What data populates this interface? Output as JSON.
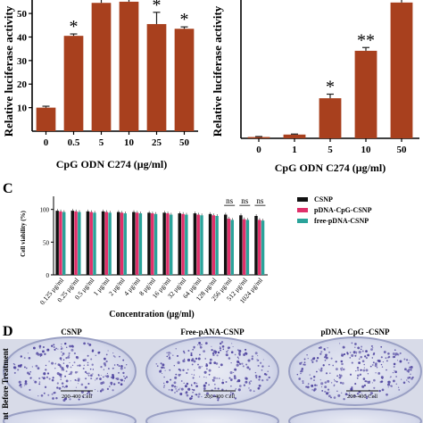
{
  "panel_c_letter": "C",
  "panel_d_letter": "D",
  "chart_data": [
    {
      "panel": "A",
      "type": "bar",
      "xlabel": "CpG ODN C274 (μg/ml)",
      "ylabel": "Relative luciferase activity",
      "categories": [
        "0",
        "0.5",
        "5",
        "10",
        "25",
        "50"
      ],
      "values": [
        10,
        40.5,
        54.5,
        55,
        45.5,
        43.5
      ],
      "errors": [
        0.6,
        0.8,
        1.5,
        3,
        5,
        0.8
      ],
      "significance": [
        "",
        "*",
        "",
        "",
        "*",
        "*"
      ],
      "yticks": [
        10,
        20,
        30,
        40,
        50
      ],
      "ylim": [
        0,
        58
      ],
      "color": "#a8401e",
      "grid": false
    },
    {
      "panel": "B",
      "type": "bar",
      "xlabel": "CpG ODN C274 (μg/ml)",
      "ylabel": "Relative luciferase activity",
      "categories": [
        "0",
        "1",
        "5",
        "10",
        "50"
      ],
      "values": [
        0.8,
        2.3,
        24.5,
        53.5,
        83
      ],
      "errors": [
        0.3,
        0.3,
        2.5,
        2,
        3
      ],
      "significance": [
        "",
        "",
        "*",
        "**",
        ""
      ],
      "ylim": [
        0,
        84
      ],
      "color": "#a8401e",
      "grid": false
    },
    {
      "panel": "C",
      "type": "bar",
      "ylabel": "Cell viability (%)",
      "xlabel": "Concentration (μg/ml)",
      "ylim": [
        0,
        120
      ],
      "yticks": [
        0,
        50,
        100
      ],
      "categories": [
        "0.125 μg/ml",
        "0.25 μg/ml",
        "0.5 μg/ml",
        "1 μg/ml",
        "2 μg/ml",
        "4 μg/ml",
        "8 μg/ml",
        "16 μg/ml",
        "32 μg/ml",
        "64 μg/ml",
        "128 μg/ml",
        "256 μg/ml",
        "512 μg/ml",
        "1024 μg/ml"
      ],
      "series": [
        {
          "name": "CSNP",
          "color": "#111111",
          "values": [
            98,
            98,
            97,
            97,
            96,
            96,
            95,
            95,
            94,
            94,
            93,
            92,
            91,
            90
          ]
        },
        {
          "name": "pDNA-CpG-CSNP",
          "color": "#e0306a",
          "values": [
            97,
            97,
            96,
            96,
            95,
            95,
            94,
            94,
            93,
            92,
            91,
            86,
            85,
            84
          ]
        },
        {
          "name": "free-pDNA-CSNP",
          "color": "#2aa39a",
          "values": [
            96,
            96,
            95,
            95,
            94,
            94,
            93,
            92,
            92,
            91,
            90,
            84,
            84,
            83
          ]
        }
      ],
      "annotations": [
        {
          "text": "ns",
          "category": "256 μg/ml"
        },
        {
          "text": "ns",
          "category": "512 μg/ml"
        },
        {
          "text": "ns",
          "category": "1024 μg/ml"
        }
      ],
      "legend": "top-right",
      "grid": false
    }
  ],
  "panel_d": {
    "labels": [
      "CSNP",
      "Free-pANA-CSNP",
      "pDNA- CpG -CSNP"
    ],
    "row_label": "Before Treatment",
    "row_label_2": "nt",
    "scale_bar": "200-400 Cell"
  }
}
